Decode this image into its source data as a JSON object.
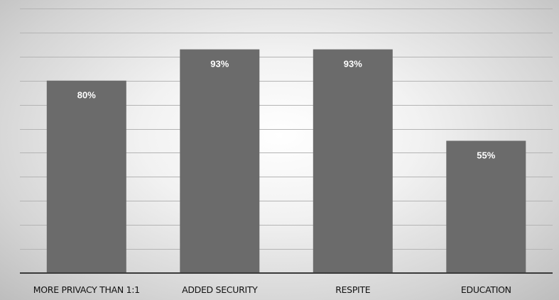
{
  "chart_data": {
    "type": "bar",
    "categories": [
      "MORE PRIVACY THAN 1:1",
      "ADDED SECURITY",
      "RESPITE",
      "EDUCATION"
    ],
    "values": [
      80,
      93,
      93,
      55
    ],
    "data_labels": [
      "80%",
      "93%",
      "93%",
      "55%"
    ],
    "title": "",
    "xlabel": "",
    "ylabel": "",
    "ylim": [
      0,
      110
    ],
    "grid": true,
    "legend": "none",
    "colors": {
      "bar": "#6b6b6b",
      "data_label": "#ffffff",
      "gridline": "#b4b4b4",
      "baseline": "#3a3a3a"
    }
  }
}
